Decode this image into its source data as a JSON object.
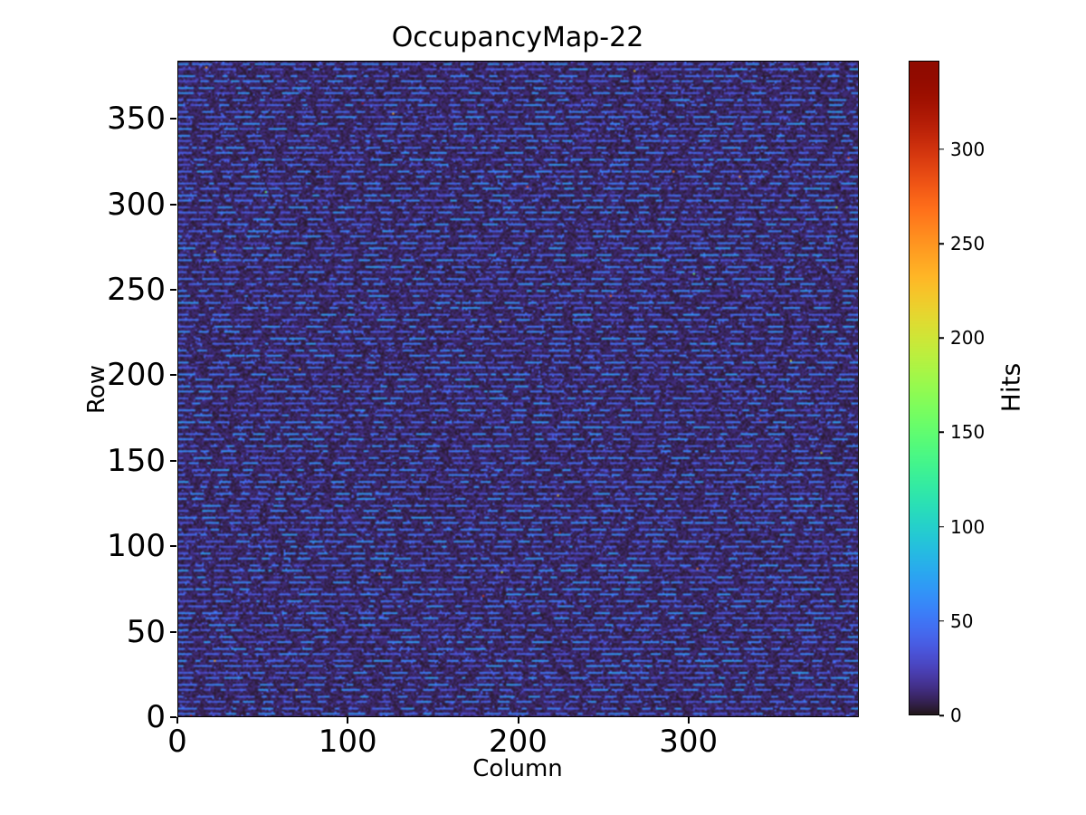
{
  "figure": {
    "title": "OccupancyMap-22",
    "xlabel": "Column",
    "ylabel": "Row",
    "colorbar_label": "Hits"
  },
  "chart_data": {
    "type": "heatmap",
    "title": "OccupancyMap-22",
    "xlabel": "Column",
    "ylabel": "Row",
    "colorbar_label": "Hits",
    "colormap": "turbo",
    "xlim": [
      0,
      400
    ],
    "ylim": [
      0,
      384
    ],
    "vmin": 0,
    "vmax": 347,
    "x_ticks": [
      0,
      100,
      200,
      300
    ],
    "y_ticks": [
      0,
      50,
      100,
      150,
      200,
      250,
      300,
      350
    ],
    "colorbar_ticks": [
      0,
      50,
      100,
      150,
      200,
      250,
      300
    ],
    "grid": false,
    "legend": false,
    "description": "Pixel-detector hit occupancy map: dark purple low-occupancy background with horizontal dashed bands of ~30-70 hits on roughly every 3rd-4th row, plus ~30 isolated hot pixels up to the 347-hit maximum.",
    "pattern": {
      "seed": 22,
      "rows": 384,
      "cols": 400,
      "background_value_range": [
        2,
        14
      ],
      "dash_row_period": 7,
      "dash_row_mods": [
        1,
        4
      ],
      "dash_value_range": [
        28,
        68
      ],
      "dash_length_range": [
        2,
        12
      ],
      "gap_length_range": [
        1,
        8
      ],
      "dot_probability": 0.05,
      "dot_value_range": [
        18,
        46
      ],
      "hot_pixel_count": 30,
      "hot_value_range": [
        140,
        347
      ]
    },
    "colors": {
      "background_low": "#2a1a38",
      "dash_blue": "#4a5fd0",
      "colorbar_top": "#900c00",
      "axes_edge": "#000000"
    }
  }
}
